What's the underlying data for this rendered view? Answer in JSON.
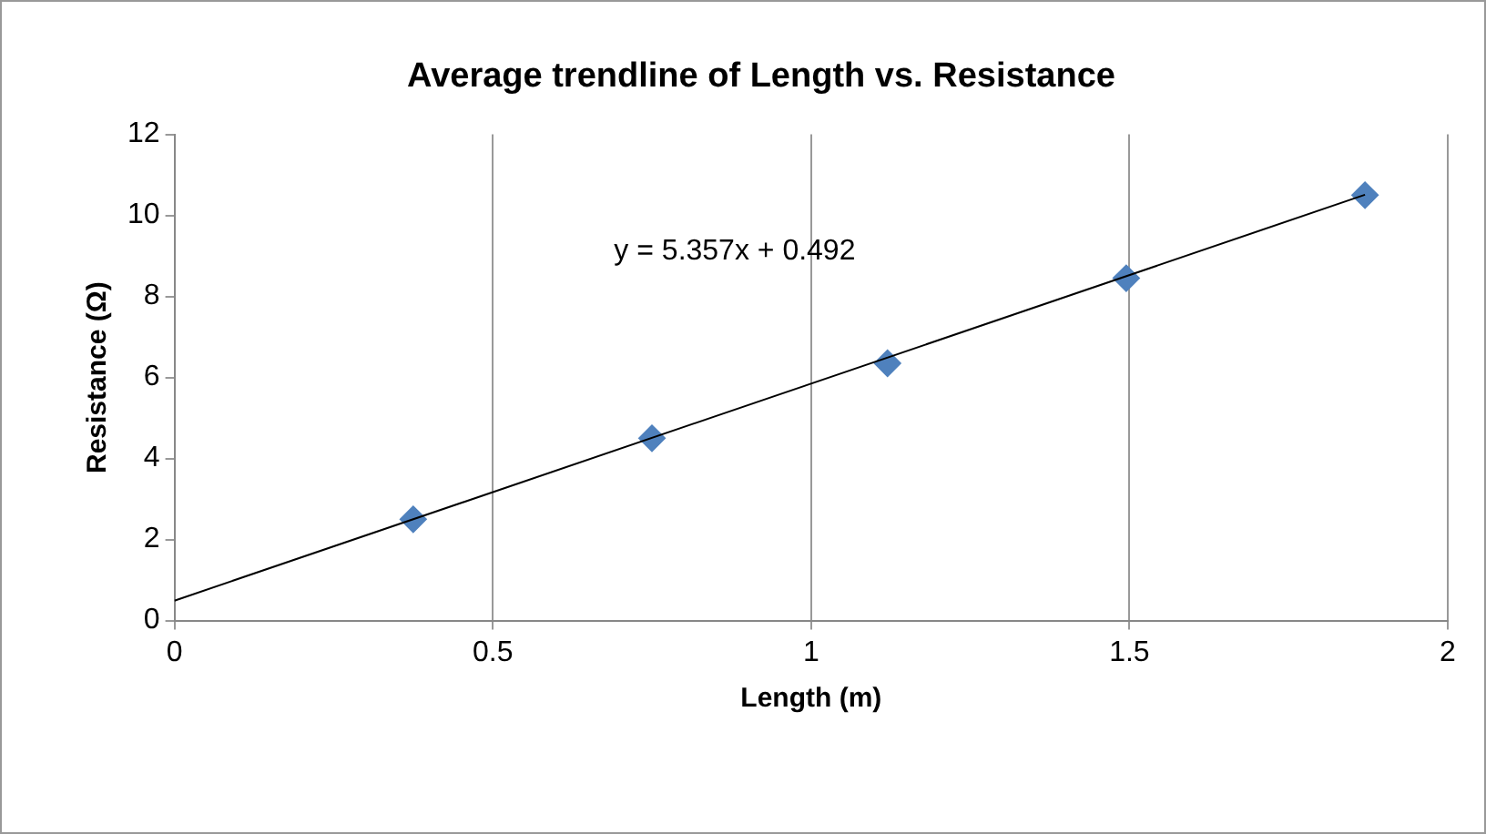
{
  "chart_data": {
    "type": "scatter",
    "title": "Average trendline of Length vs. Resistance",
    "xlabel": "Length (m)",
    "ylabel": "Resistance (Ω)",
    "xlim": [
      0,
      2
    ],
    "xticks": [
      0,
      0.5,
      1,
      1.5,
      2
    ],
    "ylim": [
      0,
      12
    ],
    "yticks": [
      0,
      2,
      4,
      6,
      8,
      10,
      12
    ],
    "grid": "x",
    "legend": false,
    "marker": "diamond",
    "series": [
      {
        "type": "scatter",
        "color": "#4f81bd",
        "x": [
          0.375,
          0.75,
          1.12,
          1.495,
          1.87
        ],
        "values": [
          2.5,
          4.5,
          6.35,
          8.45,
          10.5
        ]
      },
      {
        "type": "line",
        "color": "#000000",
        "marker": "none",
        "line_style": "solid",
        "x": [
          0,
          1.87
        ],
        "values": [
          0.492,
          10.51
        ]
      }
    ],
    "annotations": [
      "y = 5.357x + 0.492"
    ]
  }
}
